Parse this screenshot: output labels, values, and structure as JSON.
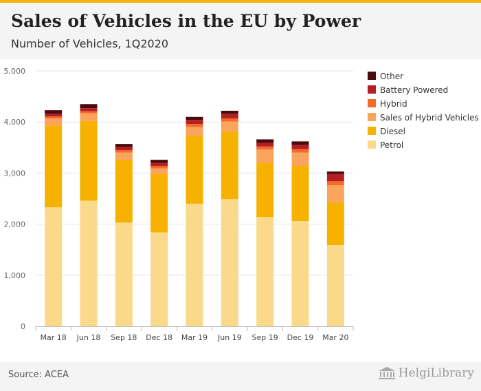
{
  "header": {
    "title": "Sales of Vehicles in the EU by Power",
    "subtitle": "Number of Vehicles, 1Q2020"
  },
  "footer": {
    "source": "Source: ACEA",
    "brand": "HelgiLibrary"
  },
  "chart_data": {
    "type": "bar",
    "stacked": true,
    "categories": [
      "Mar 18",
      "Jun 18",
      "Sep 18",
      "Dec 18",
      "Mar 19",
      "Jun 19",
      "Sep 19",
      "Dec 19",
      "Mar 20"
    ],
    "ylim": [
      0,
      5000
    ],
    "yticks": [
      0,
      1000,
      2000,
      3000,
      4000,
      5000
    ],
    "ytick_labels": [
      "0",
      "1,000",
      "2,000",
      "3,000",
      "4,000",
      "5,000"
    ],
    "grid": true,
    "legend_position": "right",
    "series": [
      {
        "name": "Petrol",
        "color": "#fad98a",
        "values": [
          2330,
          2460,
          2030,
          1840,
          2400,
          2490,
          2140,
          2060,
          1590
        ]
      },
      {
        "name": "Diesel",
        "color": "#f7b200",
        "values": [
          1600,
          1560,
          1230,
          1140,
          1320,
          1320,
          1060,
          1080,
          840
        ]
      },
      {
        "name": "Sales of Hybrid Vehicles",
        "color": "#fba45c",
        "values": [
          140,
          150,
          140,
          110,
          180,
          200,
          260,
          260,
          330
        ]
      },
      {
        "name": "Hybrid",
        "color": "#f26b2a",
        "values": [
          40,
          40,
          50,
          50,
          60,
          60,
          60,
          70,
          80
        ]
      },
      {
        "name": "Battery Powered",
        "color": "#b51f24",
        "values": [
          50,
          60,
          60,
          60,
          80,
          90,
          70,
          80,
          140
        ]
      },
      {
        "name": "Other",
        "color": "#4a0b0e",
        "values": [
          70,
          80,
          60,
          60,
          60,
          60,
          70,
          70,
          50
        ]
      }
    ]
  }
}
